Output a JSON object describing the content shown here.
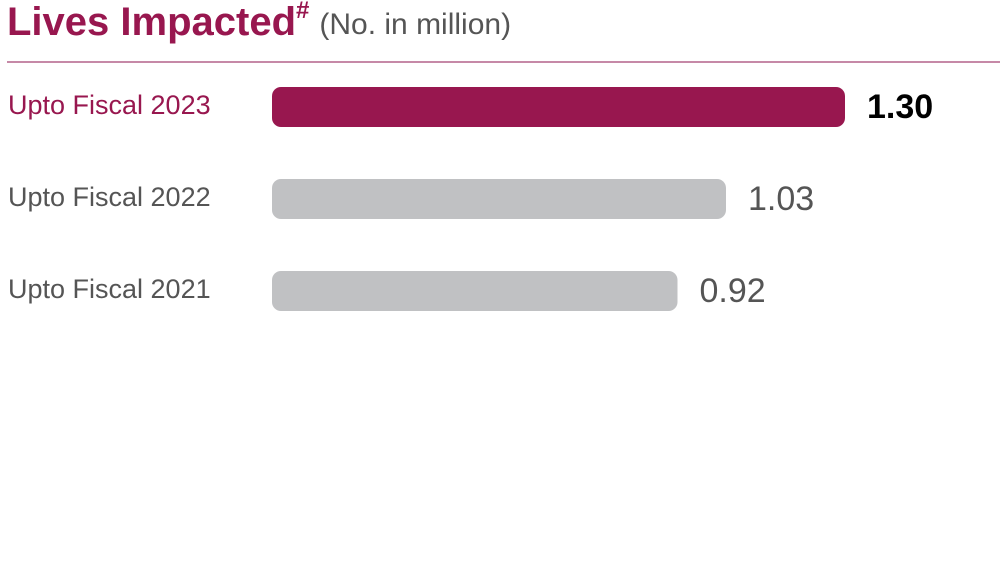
{
  "chart_data": {
    "type": "bar",
    "orientation": "horizontal",
    "title": "Lives Impacted",
    "title_superscript": "#",
    "subtitle": "(No. in million)",
    "categories": [
      "Upto Fiscal 2023",
      "Upto Fiscal 2022",
      "Upto Fiscal 2021"
    ],
    "values": [
      1.3,
      1.03,
      0.92
    ],
    "value_labels": [
      "1.30",
      "1.03",
      "0.92"
    ],
    "colors": [
      "#98174f",
      "#c0c1c3",
      "#c0c1c3"
    ],
    "category_label_colors": [
      "#98174f",
      "#555555",
      "#555555"
    ],
    "value_label_colors": [
      "#000000",
      "#555555",
      "#555555"
    ],
    "value_label_bold": [
      true,
      false,
      false
    ],
    "rule_color": "#b4628a"
  }
}
